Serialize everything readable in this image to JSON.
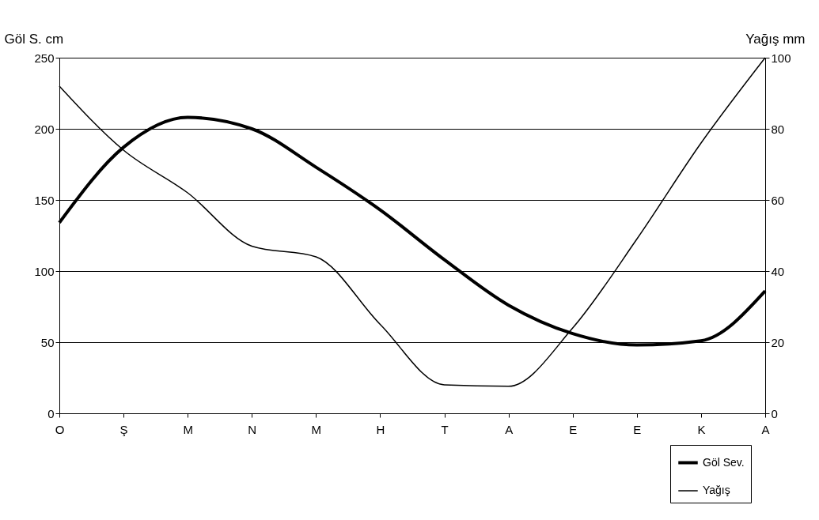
{
  "chart_data": {
    "type": "line",
    "categories": [
      "O",
      "Ş",
      "M",
      "N",
      "M",
      "H",
      "T",
      "A",
      "E",
      "E",
      "K",
      "A"
    ],
    "series": [
      {
        "name": "Göl Sev.",
        "color": "#000000",
        "values": [
          134,
          187,
          208,
          200,
          173,
          143,
          108,
          76,
          56,
          48,
          51,
          86
        ]
      },
      {
        "name": "Yağış",
        "color": "#000000",
        "axis": "y2",
        "values": [
          92,
          74,
          62,
          47,
          44,
          25,
          8,
          7.6,
          24,
          49,
          76,
          100
        ]
      }
    ],
    "ylabel": "Göl S. cm",
    "y2label": "Yağış mm",
    "ylim": [
      0,
      250
    ],
    "yticks": [
      0,
      50,
      100,
      150,
      200,
      250
    ],
    "y2lim": [
      0,
      100
    ],
    "y2ticks": [
      0,
      20,
      40,
      60,
      80,
      100
    ],
    "grid": "y",
    "legend": "bottom right",
    "marker": "none",
    "line_style": "solid"
  }
}
